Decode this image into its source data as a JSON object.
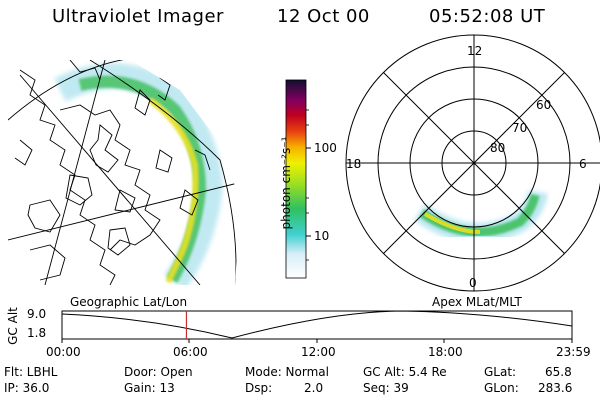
{
  "header": {
    "instrument": "Ultraviolet Imager",
    "date": "12 Oct 00",
    "time": "05:52:08 UT"
  },
  "colorbar": {
    "label": "photon cm⁻²s⁻¹",
    "ticks": [
      "100",
      "10"
    ]
  },
  "left_panel": {
    "label": "Geographic Lat/Lon"
  },
  "right_panel": {
    "label": "Apex MLat/MLT",
    "mlt_labels": {
      "top": "12",
      "left": "18",
      "right": "6",
      "bottom": "0"
    },
    "lat_labels": [
      "60",
      "70",
      "80"
    ]
  },
  "altitude_plot": {
    "ylabel": "GC Alt",
    "ymax": "9.0",
    "ymin": "1.8",
    "xticks": [
      "00:00",
      "06:00",
      "12:00",
      "18:00",
      "23:59"
    ],
    "current_time_fraction": 0.244
  },
  "footer": {
    "flt": "Flt: LBHL",
    "ip": "IP: 36.0",
    "door": "Door: Open",
    "gain": "Gain: 13",
    "mode": "Mode: Normal",
    "dsp": "Dsp:",
    "dsp_val": "2.0",
    "gc_alt": "GC Alt: 5.4 Re",
    "seq": "Seq: 39",
    "glat": "GLat:",
    "glat_val": "65.8",
    "glon": "GLon:",
    "glon_val": "283.6"
  },
  "colors": {
    "time_marker": "#c83030",
    "aurora_bright": "#e8e020",
    "aurora_mid": "#40c040",
    "aurora_dim": "#70d0e0"
  }
}
